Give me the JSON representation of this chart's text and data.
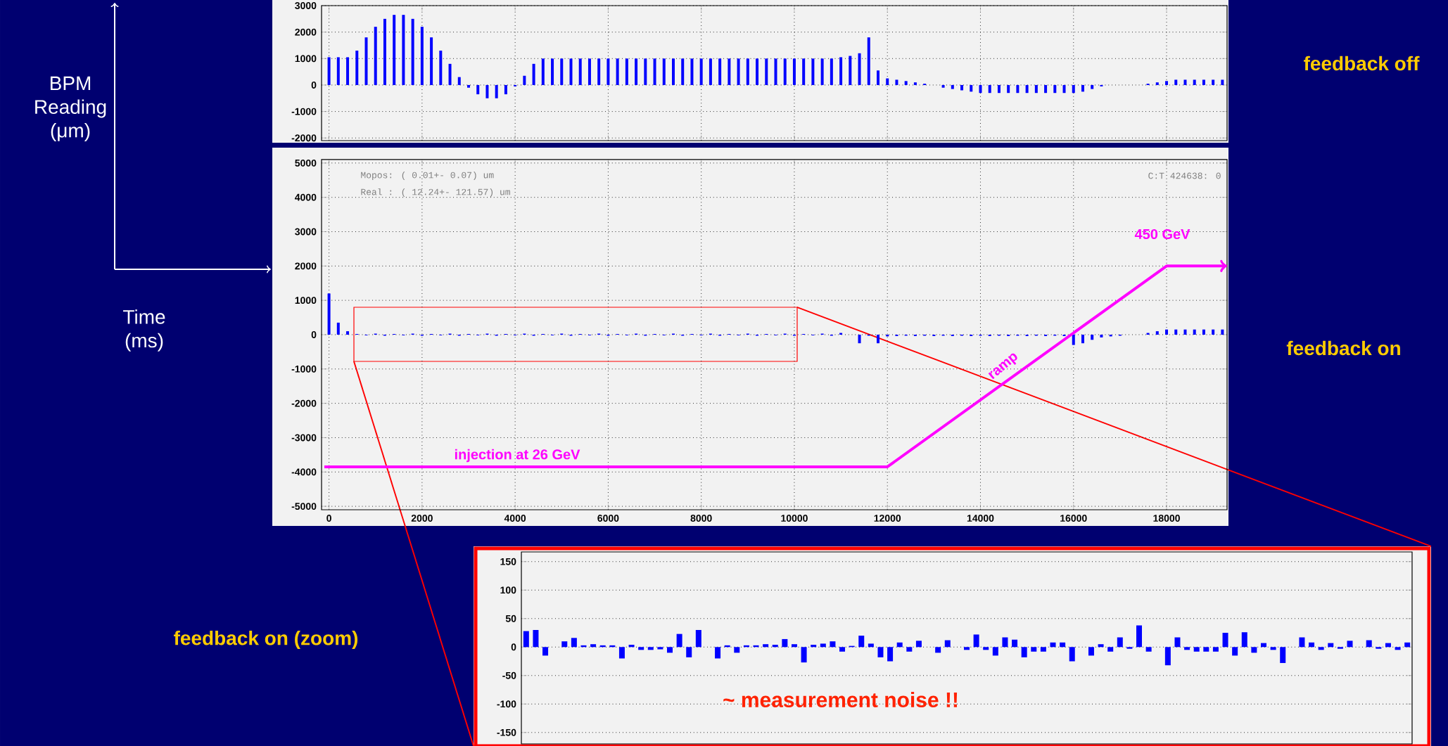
{
  "chart_data": [
    {
      "type": "bar",
      "color": "#0000ff",
      "grid": true,
      "tick_labels": "y",
      "xlim": [
        -160,
        19300
      ],
      "ylim": [
        -2100,
        3000
      ],
      "xticks": [
        0,
        2000,
        4000,
        6000,
        8000,
        10000,
        12000,
        14000,
        16000,
        18000
      ],
      "yticks": [
        -2000,
        -1000,
        0,
        1000,
        2000,
        3000
      ],
      "annotations": [
        "BPM Reading (μm)",
        "Time (ms)",
        "feedback off"
      ],
      "x": [
        0,
        200,
        400,
        600,
        800,
        1000,
        1200,
        1400,
        1600,
        1800,
        2000,
        2200,
        2400,
        2600,
        2800,
        3000,
        3200,
        3400,
        3600,
        3800,
        4000,
        4200,
        4400,
        4600,
        4800,
        5000,
        5200,
        5400,
        5600,
        5800,
        6000,
        6200,
        6400,
        6600,
        6800,
        7000,
        7200,
        7400,
        7600,
        7800,
        8000,
        8200,
        8400,
        8600,
        8800,
        9000,
        9200,
        9400,
        9600,
        9800,
        10000,
        10200,
        10400,
        10600,
        10800,
        11000,
        11200,
        11400,
        11600,
        11800,
        12000,
        12200,
        12400,
        12600,
        12800,
        13000,
        13200,
        13400,
        13600,
        13800,
        14000,
        14200,
        14400,
        14600,
        14800,
        15000,
        15200,
        15400,
        15600,
        15800,
        16000,
        16200,
        16400,
        16600,
        16800,
        17000,
        17200,
        17400,
        17600,
        17800,
        18000,
        18200,
        18400,
        18600,
        18800,
        19000,
        19200
      ],
      "values": [
        1050,
        1050,
        1050,
        1300,
        1800,
        2200,
        2500,
        2650,
        2650,
        2500,
        2200,
        1800,
        1300,
        800,
        300,
        -100,
        -350,
        -500,
        -500,
        -350,
        -50,
        350,
        800,
        1000,
        1000,
        1000,
        1000,
        1000,
        1000,
        1000,
        1000,
        1000,
        1000,
        1000,
        1000,
        1000,
        1000,
        1000,
        1000,
        1000,
        1000,
        1000,
        1000,
        1000,
        1000,
        1000,
        1000,
        1000,
        1000,
        1000,
        1000,
        1000,
        1000,
        1000,
        1000,
        1050,
        1100,
        1200,
        1800,
        550,
        250,
        200,
        150,
        100,
        50,
        0,
        -100,
        -150,
        -200,
        -250,
        -300,
        -300,
        -300,
        -300,
        -300,
        -300,
        -300,
        -300,
        -300,
        -300,
        -300,
        -250,
        -150,
        -50,
        0,
        0,
        0,
        0,
        50,
        100,
        150,
        200,
        200,
        200,
        200,
        200,
        200
      ]
    },
    {
      "type": "bar",
      "grid": true,
      "xlim": [
        -160,
        19300
      ],
      "ylim": [
        -5100,
        5100
      ],
      "xticks": [
        0,
        2000,
        4000,
        6000,
        8000,
        10000,
        12000,
        14000,
        16000,
        18000
      ],
      "yticks": [
        -5000,
        -4000,
        -3000,
        -2000,
        -1000,
        0,
        1000,
        2000,
        3000,
        4000,
        5000
      ],
      "annotations": [
        "Mopos: ( 0.01+- 0.07) um",
        "Real : ( 12.24+- 121.57) um",
        "C:T 424638: 0",
        "feedback on",
        "injection at 26 GeV",
        "ramp",
        "450 GeV"
      ],
      "x": [
        0,
        200,
        400,
        600,
        800,
        1000,
        1200,
        1400,
        1600,
        1800,
        2000,
        2200,
        2400,
        2600,
        2800,
        3000,
        3200,
        3400,
        3600,
        3800,
        4000,
        4200,
        4400,
        4600,
        4800,
        5000,
        5200,
        5400,
        5600,
        5800,
        6000,
        6200,
        6400,
        6600,
        6800,
        7000,
        7200,
        7400,
        7600,
        7800,
        8000,
        8200,
        8400,
        8600,
        8800,
        9000,
        9200,
        9400,
        9600,
        9800,
        10000,
        10200,
        10400,
        10600,
        10800,
        11000,
        11200,
        11400,
        11600,
        11800,
        12000,
        12200,
        12400,
        12600,
        12800,
        13000,
        13200,
        13400,
        13600,
        13800,
        14000,
        14200,
        14400,
        14600,
        14800,
        15000,
        15200,
        15400,
        15600,
        15800,
        16000,
        16200,
        16400,
        16600,
        16800,
        17000,
        17200,
        17400,
        17600,
        17800,
        18000,
        18200,
        18400,
        18600,
        18800,
        19000,
        19200
      ],
      "series": [
        {
          "type": "bar",
          "color": "#0000ff",
          "values": [
            1200,
            350,
            100,
            20,
            -20,
            30,
            -30,
            20,
            -20,
            30,
            -30,
            20,
            -20,
            30,
            -30,
            20,
            -20,
            30,
            -30,
            20,
            -20,
            30,
            -30,
            20,
            -20,
            30,
            -30,
            20,
            -20,
            30,
            -30,
            20,
            -20,
            30,
            -30,
            20,
            -20,
            30,
            -30,
            20,
            -20,
            30,
            -30,
            20,
            -20,
            30,
            -30,
            20,
            -20,
            30,
            -30,
            20,
            -20,
            30,
            -30,
            50,
            0,
            -250,
            -30,
            -250,
            -50,
            -40,
            -30,
            -40,
            -30,
            -40,
            -30,
            -40,
            -30,
            -40,
            -30,
            -40,
            -30,
            -40,
            -30,
            -40,
            -30,
            -40,
            -30,
            -40,
            -300,
            -250,
            -150,
            -80,
            -50,
            -30,
            0,
            0,
            50,
            100,
            150,
            150,
            150,
            150,
            150,
            150,
            150
          ]
        },
        {
          "type": "line",
          "color": "#ff00ff",
          "x": [
            -100,
            12000,
            18000,
            19300
          ],
          "values": [
            -3850,
            -3850,
            2000,
            2000
          ]
        }
      ]
    },
    {
      "type": "bar",
      "color": "#0000ff",
      "grid": "y",
      "ylim": [
        -170,
        167
      ],
      "yticks": [
        -150,
        -100,
        -50,
        0,
        50,
        100,
        150
      ],
      "annotations": [
        "feedback on (zoom)",
        "~ measurement noise !!"
      ],
      "categories": [
        null,
        null,
        null,
        null,
        null,
        null,
        null,
        null,
        null,
        null,
        null,
        null,
        null,
        null,
        null,
        null,
        null,
        null,
        null,
        null,
        null,
        null,
        null,
        null,
        null,
        null,
        null,
        null,
        null,
        null,
        null,
        null,
        null,
        null,
        null,
        null,
        null,
        null,
        null,
        null,
        null,
        null,
        null,
        null,
        null,
        null,
        null,
        null,
        null,
        null,
        null,
        null,
        null,
        null,
        null,
        null,
        null,
        null,
        null,
        null,
        null,
        null,
        null,
        null,
        null,
        null,
        null,
        null,
        null,
        null,
        null,
        null,
        null,
        null,
        null,
        null,
        null,
        null,
        null,
        null,
        null,
        null,
        null,
        null,
        null,
        null,
        null,
        null,
        null,
        null,
        null,
        null,
        null
      ],
      "values": [
        28,
        30,
        -15,
        0,
        10,
        16,
        3,
        5,
        3,
        3,
        -20,
        4,
        -5,
        -5,
        -4,
        -10,
        23,
        -18,
        30,
        0,
        -20,
        3,
        -10,
        3,
        3,
        5,
        4,
        14,
        5,
        -27,
        4,
        6,
        10,
        -8,
        2,
        20,
        6,
        -18,
        -25,
        8,
        -8,
        11,
        0,
        -10,
        12,
        0,
        -5,
        22,
        -5,
        -15,
        17,
        13,
        -18,
        -8,
        -8,
        8,
        8,
        -25,
        0,
        -15,
        5,
        -8,
        17,
        -3,
        38,
        -8,
        0,
        -32,
        17,
        -5,
        -8,
        -8,
        -8,
        25,
        -15,
        26,
        -10,
        7,
        -5,
        -28,
        0,
        17,
        8,
        -5,
        7,
        -3,
        11,
        0,
        12,
        -3,
        7,
        -5,
        8
      ]
    }
  ]
}
